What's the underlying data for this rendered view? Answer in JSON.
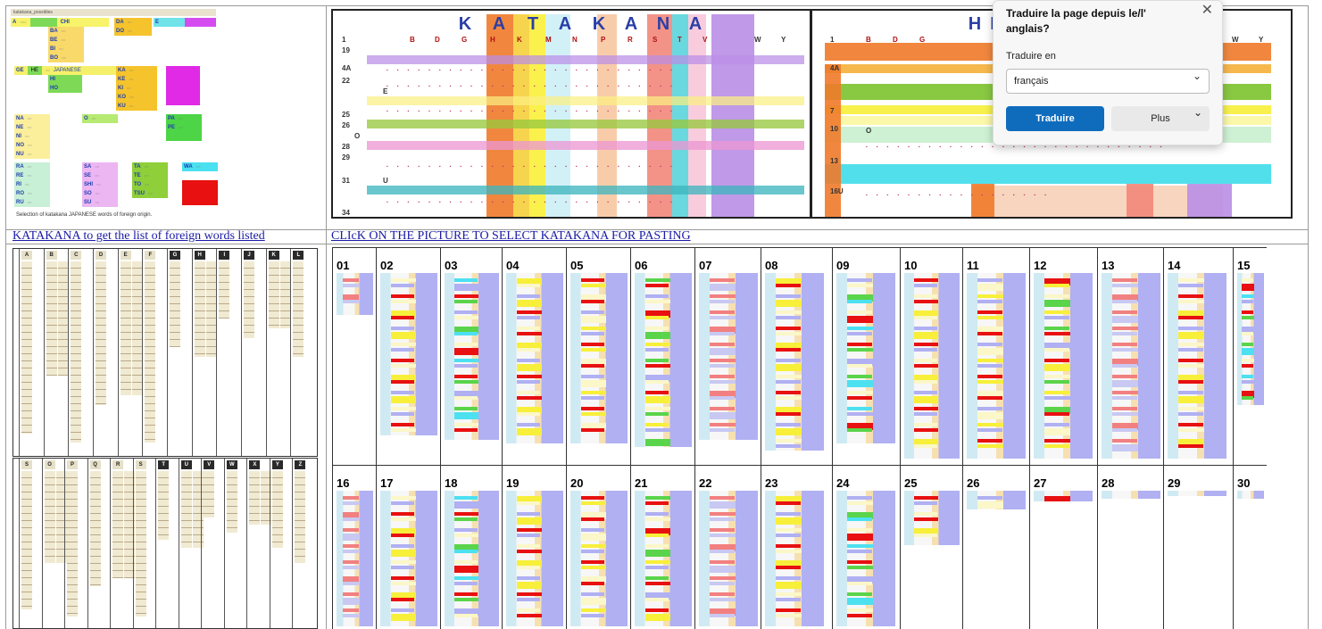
{
  "top_left": {
    "tag": "katakana_possibles",
    "caption": "Selection of katakana  JAPANESE  words of foreign origin.",
    "blocks": [
      {
        "rows": [
          "A",
          "CHI"
        ]
      },
      {
        "rows": [
          "BA",
          "BA",
          "BE",
          "BI",
          "BO"
        ]
      },
      {
        "rows": [
          "DA",
          "DO"
        ]
      },
      {
        "rows": [
          "E"
        ]
      },
      {
        "rows": [
          "GE",
          "HE",
          "HI",
          "HO",
          "JAPANESE"
        ]
      },
      {
        "rows": [
          "KA",
          "KE",
          "KI",
          "KO",
          "KU"
        ]
      },
      {
        "rows": [
          "NA",
          "NE",
          "NI",
          "NO",
          "NU"
        ]
      },
      {
        "rows": [
          "O"
        ]
      },
      {
        "rows": [
          "PA",
          "PE"
        ]
      },
      {
        "rows": [
          "RA",
          "RE",
          "RI",
          "RO",
          "RU"
        ]
      },
      {
        "rows": [
          "SA",
          "SE",
          "SHI",
          "SO",
          "SU"
        ]
      },
      {
        "rows": [
          "TA",
          "TE",
          "TO",
          "TSU"
        ]
      },
      {
        "rows": [
          "WA"
        ]
      }
    ]
  },
  "katakana_chart": {
    "title_letters": [
      "K",
      "A",
      "T",
      "A",
      "K",
      "A",
      "N",
      "A"
    ],
    "col_letters": [
      "B",
      "D",
      "G",
      "H",
      "K",
      "M",
      "N",
      "P",
      "R",
      "S",
      "T",
      "V",
      "W",
      "Y"
    ],
    "row_numbers": [
      "1",
      "19",
      "4A",
      "22",
      "E",
      "25",
      "26",
      "28",
      "29",
      "O",
      "31",
      "U",
      "34"
    ],
    "accent_colors": [
      "#e8792c",
      "#f6d34a",
      "#fbf23a",
      "#cdeef6",
      "#f8c9a0",
      "#f4886e",
      "#5ad4d8",
      "#b98ee0",
      "#c7e27a",
      "#e8a8d8"
    ]
  },
  "hiragana_chart": {
    "title_letters": [
      "H",
      "I"
    ],
    "col_letters": [
      "B",
      "D",
      "G",
      "W",
      "Y"
    ],
    "row_numbers": [
      "1",
      "4A",
      "7",
      "10",
      "O",
      "13",
      "16U"
    ]
  },
  "links": {
    "katakana_list": "KATAKANA to get the list of foreign words listed",
    "click_picture": "CLIcK ON THE PICTURE TO SELECT KATAKANA FOR PASTING"
  },
  "kana_scan": {
    "top_headers": [
      "A",
      "B",
      "C",
      "D",
      "E",
      "F",
      "G",
      "H",
      "I",
      "J",
      "K",
      "L"
    ],
    "bottom_headers": [
      "S",
      "O",
      "P",
      "Q",
      "R",
      "S",
      "T",
      "U",
      "V",
      "W",
      "X",
      "Y",
      "Z"
    ]
  },
  "page_grid": {
    "row1": [
      "01",
      "02",
      "03",
      "04",
      "05",
      "06",
      "07",
      "08",
      "09",
      "10",
      "11",
      "12",
      "13",
      "14",
      "15"
    ],
    "row2": [
      "16",
      "17",
      "18",
      "19",
      "20",
      "21",
      "22",
      "23",
      "24",
      "25",
      "26",
      "27",
      "28",
      "29",
      "30"
    ]
  },
  "translate_popup": {
    "title": "Traduire la page depuis le/l' anglais?",
    "target_label": "Traduire en",
    "target_value": "français",
    "translate_button": "Traduire",
    "more_button": "Plus",
    "close_icon": "close-icon",
    "primary_color": "#0f6cbd"
  }
}
